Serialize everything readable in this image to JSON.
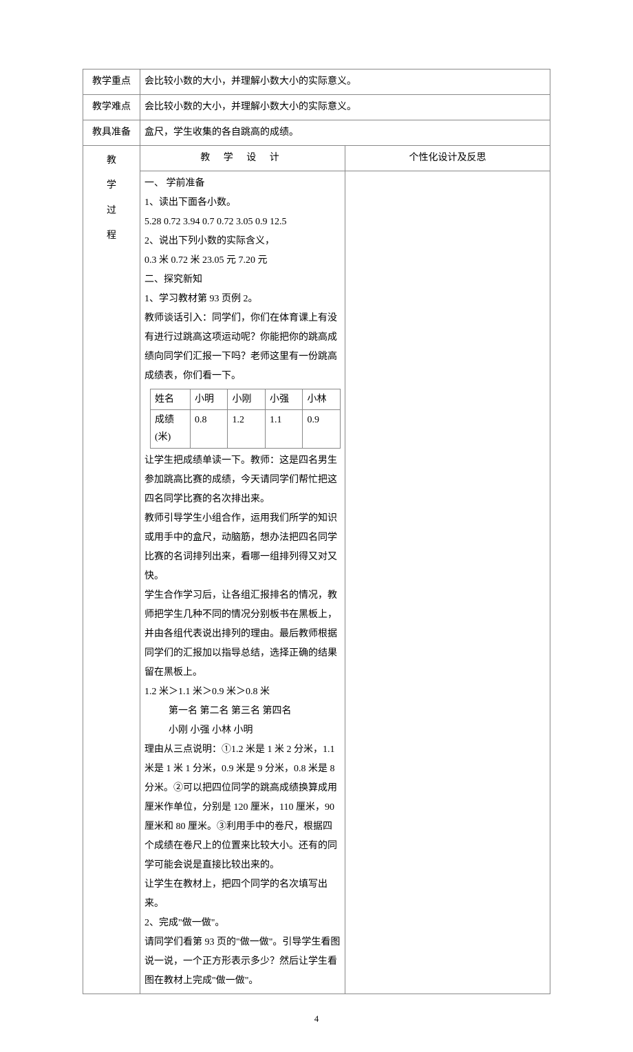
{
  "rows": {
    "keypoint": {
      "label": "教学重点",
      "text": "会比较小数的大小，并理解小数大小的实际意义。"
    },
    "difficulty": {
      "label": "教学难点",
      "text": "会比较小数的大小，并理解小数大小的实际意义。"
    },
    "tools": {
      "label": "教具准备",
      "text": "盒尺，学生收集的各自跳高的成绩。"
    }
  },
  "design_header": "教 学 设 计",
  "notes_header": "个性化设计及反思",
  "process_label_chars": [
    "教",
    "学",
    "过",
    "程"
  ],
  "body": {
    "p1": "一、   学前准备",
    "p2": "1、读出下面各小数。",
    "p3": "5.28  0.72  3.94  0.7  0.72  3.05  0.9  12.5",
    "p4": "2、说出下列小数的实际含义，",
    "p5": "0.3 米  0.72 米  23.05 元  7.20 元",
    "p6": "二、探究新知",
    "p7": "1、学习教材第 93 页例 2。",
    "p8": "教师谈话引入：同学们，你们在体育课上有没有进行过跳高这项运动呢？你能把你的跳高成绩向同学们汇报一下吗？老师这里有一份跳高成绩表，你们看一下。",
    "p9": "让学生把成绩单读一下。教师：这是四名男生参加跳高比赛的成绩，今天请同学们帮忙把这四名同学比赛的名次排出来。",
    "p10": "教师引导学生小组合作，运用我们所学的知识或用手中的盒尺，动脑筋，想办法把四名同学比赛的名词排列出来，看哪一组排列得又对又快。",
    "p11": "学生合作学习后，让各组汇报排名的情况，教师把学生几种不同的情况分别板书在黑板上，并由各组代表说出排列的理由。最后教师根据同学们的汇报加以指导总结，选择正确的结果留在黑板上。",
    "p12": "1.2 米＞1.1 米＞0.9 米＞0.8 米",
    "p13": "第一名    第二名    第三名    第四名",
    "p14": "小刚      小强     小林      小明",
    "p15": "理由从三点说明：①1.2 米是 1 米 2 分米，1.1 米是 1 米 1 分米，0.9 米是 9 分米，0.8 米是 8 分米。②可以把四位同学的跳高成绩换算成用厘米作单位，分别是 120 厘米，110 厘米，90 厘米和 80 厘米。③利用手中的卷尺，根据四个成绩在卷尺上的位置来比较大小。还有的同学可能会说是直接比较出来的。",
    "p16": "让学生在教材上，把四个同学的名次填写出来。",
    "p17": "2、完成\"做一做\"。",
    "p18": "请同学们看第 93 页的\"做一做\"。引导学生看图说一说，一个正方形表示多少？然后让学生看图在教材上完成\"做一做\"。"
  },
  "inner_table": {
    "r1": [
      "姓名",
      "小明",
      "小刚",
      "小强",
      "小林"
    ],
    "r2": [
      "成绩(米)",
      "0.8",
      "1.2",
      "1.1",
      "0.9"
    ]
  },
  "page_number": "4"
}
